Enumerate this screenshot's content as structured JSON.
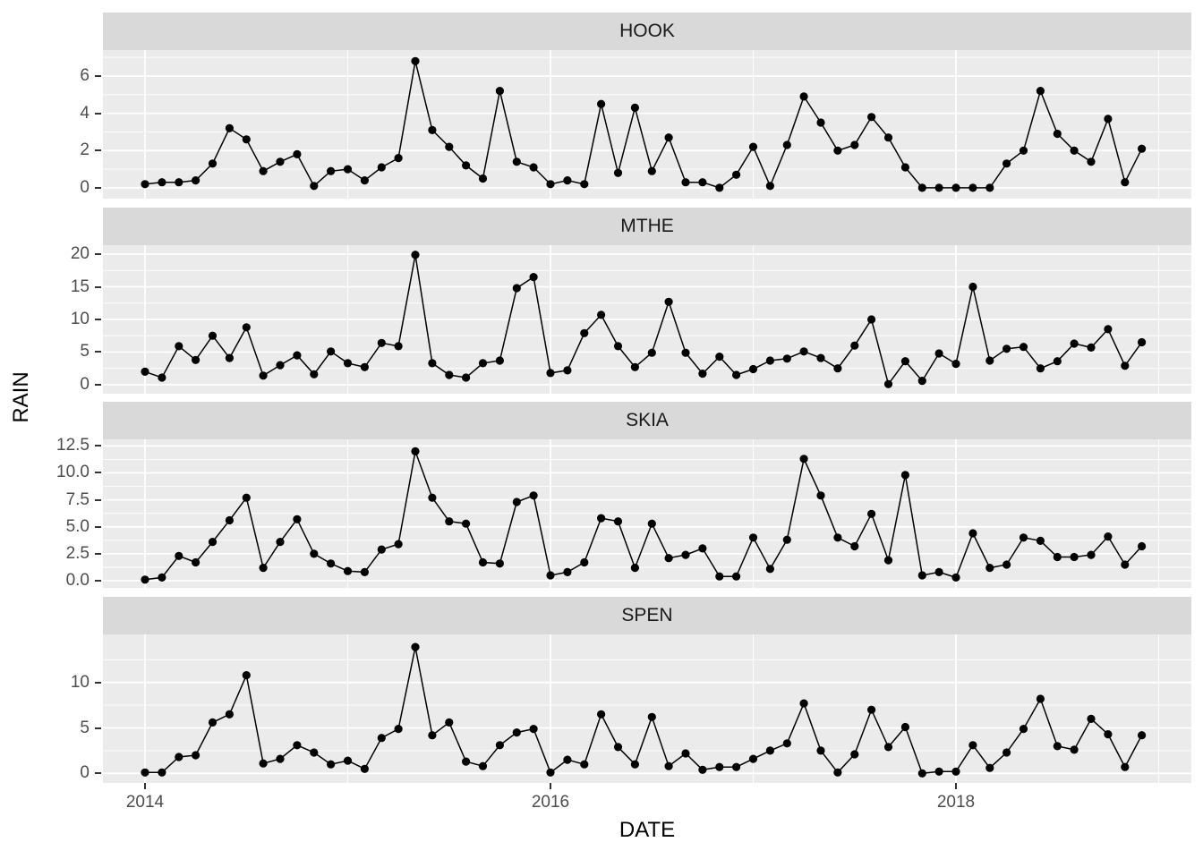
{
  "figure": {
    "y_axis_title": "RAIN",
    "x_axis_title": "DATE",
    "colors": {
      "panel_background": "#EBEBEB",
      "strip_background": "#D9D9D9",
      "gridline": "#FFFFFF",
      "line_and_points": "#000000",
      "tick_text": "#4D4D4D",
      "title_text": "#000000"
    }
  },
  "x_axis": {
    "tick_labels": [
      "2014",
      "2016",
      "2018"
    ],
    "tick_months": [
      0,
      24,
      48
    ],
    "minor_months": [
      12,
      36,
      60
    ],
    "start": "2014-01",
    "interval": "month",
    "n_points": 60
  },
  "chart_data": [
    {
      "type": "line",
      "facet": "HOOK",
      "ylabel": "RAIN",
      "ylim": [
        -0.58,
        7.39
      ],
      "ytick_values": [
        0,
        2,
        4,
        6
      ],
      "ytick_labels": [
        "0",
        "2",
        "4",
        "6"
      ],
      "yminor": [
        1,
        3,
        5,
        7
      ],
      "values": [
        0.2,
        0.3,
        0.3,
        0.4,
        1.3,
        3.2,
        2.6,
        0.9,
        1.4,
        1.8,
        0.1,
        0.9,
        1.0,
        0.4,
        1.1,
        1.6,
        6.8,
        3.1,
        2.2,
        1.2,
        0.5,
        5.2,
        1.4,
        1.1,
        0.2,
        0.4,
        0.2,
        4.5,
        0.8,
        4.3,
        0.9,
        2.7,
        0.3,
        0.3,
        0.0,
        0.7,
        2.2,
        0.1,
        2.3,
        4.9,
        3.5,
        2.0,
        2.3,
        3.8,
        2.7,
        1.1,
        0.0,
        0.0,
        0.0,
        0.0,
        0.0,
        1.3,
        2.0,
        5.2,
        2.9,
        2.0,
        1.4,
        3.7,
        0.3,
        2.1
      ]
    },
    {
      "type": "line",
      "facet": "MTHE",
      "ylabel": "RAIN",
      "ylim": [
        -1.37,
        21.37
      ],
      "ytick_values": [
        0,
        5,
        10,
        15,
        20
      ],
      "ytick_labels": [
        "0",
        "5",
        "10",
        "15",
        "20"
      ],
      "yminor": [
        2.5,
        7.5,
        12.5,
        17.5
      ],
      "values": [
        2.0,
        1.1,
        5.9,
        3.8,
        7.5,
        4.1,
        8.8,
        1.4,
        3.0,
        4.5,
        1.6,
        5.1,
        3.3,
        2.7,
        6.4,
        5.9,
        19.9,
        3.3,
        1.5,
        1.1,
        3.3,
        3.7,
        14.8,
        16.5,
        1.8,
        2.2,
        7.9,
        10.7,
        5.9,
        2.7,
        4.9,
        12.7,
        4.9,
        1.7,
        4.3,
        1.5,
        2.4,
        3.7,
        4.0,
        5.1,
        4.1,
        2.5,
        6.0,
        10.0,
        0.1,
        3.6,
        0.6,
        4.8,
        3.2,
        15.0,
        3.7,
        5.5,
        5.8,
        2.5,
        3.6,
        6.3,
        5.7,
        8.5,
        2.9,
        6.5
      ]
    },
    {
      "type": "line",
      "facet": "SKIA",
      "ylabel": "RAIN",
      "ylim": [
        -0.66,
        13.11
      ],
      "ytick_values": [
        0,
        2.5,
        5,
        7.5,
        10,
        12.5
      ],
      "ytick_labels": [
        "0.0",
        "2.5",
        "5.0",
        "7.5",
        "10.0",
        "12.5"
      ],
      "yminor": [
        1.25,
        3.75,
        6.25,
        8.75,
        11.25
      ],
      "values": [
        0.1,
        0.3,
        2.3,
        1.7,
        3.6,
        5.6,
        7.7,
        1.2,
        3.6,
        5.7,
        2.5,
        1.6,
        0.9,
        0.8,
        2.9,
        3.4,
        12.0,
        7.7,
        5.5,
        5.3,
        1.7,
        1.6,
        7.3,
        7.9,
        0.5,
        0.8,
        1.7,
        5.8,
        5.5,
        1.2,
        5.3,
        2.1,
        2.4,
        3.0,
        0.4,
        0.4,
        4.0,
        1.1,
        3.8,
        11.3,
        7.9,
        4.0,
        3.2,
        6.2,
        1.9,
        9.8,
        0.5,
        0.8,
        0.3,
        4.4,
        1.2,
        1.5,
        4.0,
        3.7,
        2.2,
        2.2,
        2.4,
        4.1,
        1.5,
        3.2
      ]
    },
    {
      "type": "line",
      "facet": "SPEN",
      "ylabel": "RAIN",
      "ylim": [
        -1.05,
        15.29
      ],
      "ytick_values": [
        0,
        5,
        10
      ],
      "ytick_labels": [
        "0",
        "5",
        "10"
      ],
      "yminor": [
        2.5,
        7.5,
        12.5
      ],
      "values": [
        0.1,
        0.1,
        1.8,
        2.0,
        5.6,
        6.5,
        10.8,
        1.1,
        1.6,
        3.1,
        2.3,
        1.0,
        1.4,
        0.5,
        3.9,
        4.9,
        13.9,
        4.2,
        5.6,
        1.3,
        0.8,
        3.1,
        4.5,
        4.9,
        0.1,
        1.5,
        1.0,
        6.5,
        2.9,
        1.0,
        6.2,
        0.8,
        2.2,
        0.4,
        0.7,
        0.7,
        1.6,
        2.5,
        3.3,
        7.7,
        2.5,
        0.1,
        2.1,
        7.0,
        2.9,
        5.1,
        0.0,
        0.2,
        0.2,
        3.1,
        0.6,
        2.3,
        4.9,
        8.2,
        3.0,
        2.6,
        6.0,
        4.3,
        0.7,
        4.2
      ]
    }
  ]
}
